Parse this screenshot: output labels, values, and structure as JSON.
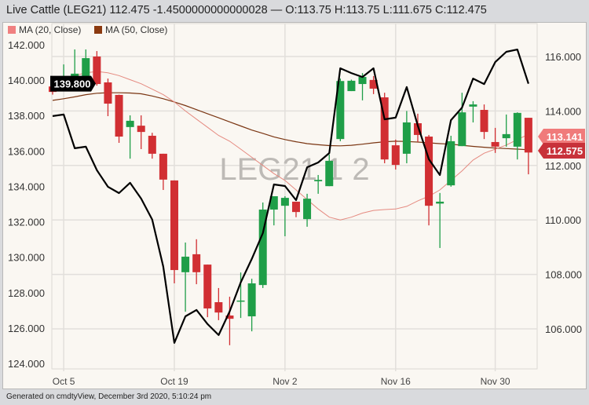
{
  "title": "Live Cattle (LEG21) 112.475 -1.4500000000000028 — O:113.75 H:113.75 L:111.675 C:112.475",
  "footer": "Generated on cmdtyView, December 3rd 2020, 5:10:24 pm",
  "watermark": "LEG21 1 2",
  "legend": [
    {
      "label": "MA (20, Close)",
      "color": "#f08080"
    },
    {
      "label": "MA (50, Close)",
      "color": "#8b3a10"
    }
  ],
  "colors": {
    "up": "#1f9e48",
    "down": "#d12f33",
    "compare_line": "#000000",
    "ma20": "#e58a80",
    "ma50": "#7a3512",
    "grid": "#e2dfdb"
  },
  "chart_data": {
    "type": "candlestick",
    "grid": true,
    "legend_position": "top-left",
    "x_tick_labels": [
      {
        "index": 1,
        "label": "Oct 5"
      },
      {
        "index": 11,
        "label": "Oct 19"
      },
      {
        "index": 21,
        "label": "Nov 2"
      },
      {
        "index": 31,
        "label": "Nov 16"
      },
      {
        "index": 40,
        "label": "Nov 30"
      }
    ],
    "right_axis": {
      "ylim": [
        106,
        116
      ],
      "ticks": [
        "106.000",
        "108.000",
        "110.000",
        "112.000",
        "114.000",
        "116.000"
      ]
    },
    "left_axis": {
      "ylim": [
        124,
        142
      ],
      "ticks": [
        "124.000",
        "126.000",
        "128.000",
        "130.000",
        "132.000",
        "134.000",
        "136.000",
        "138.000",
        "140.000",
        "142.000"
      ]
    },
    "candles": [
      [
        114.9,
        115.2,
        114.6,
        114.7
      ],
      [
        115.2,
        115.71,
        114.9,
        115.25
      ],
      [
        115.14,
        116.26,
        114.95,
        115.37
      ],
      [
        115.19,
        116.26,
        114.93,
        115.94
      ],
      [
        116.0,
        116.2,
        114.93,
        114.99
      ],
      [
        115.05,
        115.19,
        113.81,
        114.27
      ],
      [
        114.59,
        114.6,
        112.83,
        113.06
      ],
      [
        113.41,
        113.84,
        112.25,
        113.64
      ],
      [
        113.46,
        113.84,
        112.6,
        113.23
      ],
      [
        113.09,
        113.2,
        112.25,
        112.43
      ],
      [
        112.43,
        112.43,
        111.1,
        111.48
      ],
      [
        111.45,
        111.45,
        107.67,
        108.16
      ],
      [
        108.08,
        109.17,
        106.63,
        108.65
      ],
      [
        108.74,
        109.29,
        107.64,
        108.08
      ],
      [
        108.36,
        108.36,
        106.43,
        106.75
      ],
      [
        106.98,
        107.5,
        106.32,
        106.6
      ],
      [
        106.49,
        107.18,
        105.4,
        106.37
      ],
      [
        107.0,
        108.07,
        106.4,
        107.04
      ],
      [
        106.46,
        107.84,
        105.91,
        107.67
      ],
      [
        107.61,
        110.64,
        107.5,
        110.38
      ],
      [
        110.38,
        110.87,
        109.8,
        110.87
      ],
      [
        110.52,
        110.87,
        109.4,
        110.81
      ],
      [
        110.67,
        110.67,
        110.1,
        110.29
      ],
      [
        110.03,
        110.96,
        109.75,
        110.78
      ],
      [
        111.42,
        111.65,
        110.96,
        111.47
      ],
      [
        111.24,
        112.4,
        111.24,
        112.17
      ],
      [
        112.97,
        115.19,
        112.89,
        115.1
      ],
      [
        114.73,
        115.15,
        114.73,
        115.11
      ],
      [
        114.99,
        115.39,
        114.39,
        115.25
      ],
      [
        115.14,
        115.28,
        114.62,
        114.82
      ],
      [
        114.5,
        114.67,
        112.08,
        112.22
      ],
      [
        112.74,
        112.95,
        111.85,
        112.02
      ],
      [
        112.43,
        114.0,
        112.08,
        113.58
      ],
      [
        113.55,
        113.9,
        112.86,
        113.12
      ],
      [
        113.06,
        113.12,
        109.8,
        110.52
      ],
      [
        110.6,
        110.99,
        108.97,
        110.67
      ],
      [
        111.27,
        113.09,
        111.22,
        112.89
      ],
      [
        112.71,
        114.67,
        112.71,
        113.95
      ],
      [
        114.16,
        114.36,
        113.58,
        114.24
      ],
      [
        114.04,
        114.24,
        112.97,
        113.23
      ],
      [
        112.86,
        113.38,
        112.46,
        112.69
      ],
      [
        113.0,
        113.87,
        112.69,
        113.15
      ],
      [
        112.69,
        113.95,
        112.22,
        113.93
      ],
      [
        113.75,
        113.75,
        111.675,
        112.475
      ]
    ],
    "candle_fields": [
      "open",
      "high",
      "low",
      "close"
    ],
    "compare_line": [
      137.97,
      138.06,
      136.15,
      136.24,
      134.91,
      133.98,
      133.62,
      134.2,
      133.31,
      132.12,
      129.46,
      125.16,
      126.66,
      127.02,
      126.22,
      125.6,
      126.93,
      128.57,
      129.9,
      131.36,
      134.11,
      134.02,
      133.22,
      135.08,
      135.35,
      135.88,
      140.67,
      140.4,
      140.18,
      140.67,
      137.79,
      137.88,
      139.61,
      137.43,
      135.53,
      134.64,
      137.74,
      138.45,
      140.09,
      139.78,
      141.02,
      141.6,
      141.73,
      139.8
    ],
    "ma20": [
      115.1,
      115.2,
      115.3,
      115.4,
      115.45,
      115.4,
      115.3,
      115.15,
      115.0,
      114.8,
      114.6,
      114.33,
      114.0,
      113.7,
      113.4,
      113.1,
      112.89,
      112.6,
      112.3,
      112.0,
      111.7,
      111.45,
      111.1,
      110.75,
      110.4,
      110.1,
      110.0,
      110.1,
      110.25,
      110.35,
      110.38,
      110.4,
      110.5,
      110.7,
      110.87,
      111.1,
      111.45,
      111.8,
      112.2,
      112.45,
      112.6,
      112.75,
      112.95,
      113.14
    ],
    "ma50": [
      114.39,
      114.45,
      114.52,
      114.6,
      114.65,
      114.67,
      114.67,
      114.66,
      114.63,
      114.55,
      114.45,
      114.33,
      114.2,
      114.05,
      113.9,
      113.75,
      113.6,
      113.45,
      113.3,
      113.18,
      113.05,
      112.95,
      112.87,
      112.8,
      112.76,
      112.73,
      112.72,
      112.74,
      112.78,
      112.83,
      112.87,
      112.89,
      112.88,
      112.86,
      112.83,
      112.8,
      112.78,
      112.74,
      112.7,
      112.67,
      112.64,
      112.62,
      112.6,
      112.575
    ],
    "last_value_badges": {
      "compare": "139.800",
      "ma20": "113.141",
      "ma50": "112.575"
    }
  }
}
